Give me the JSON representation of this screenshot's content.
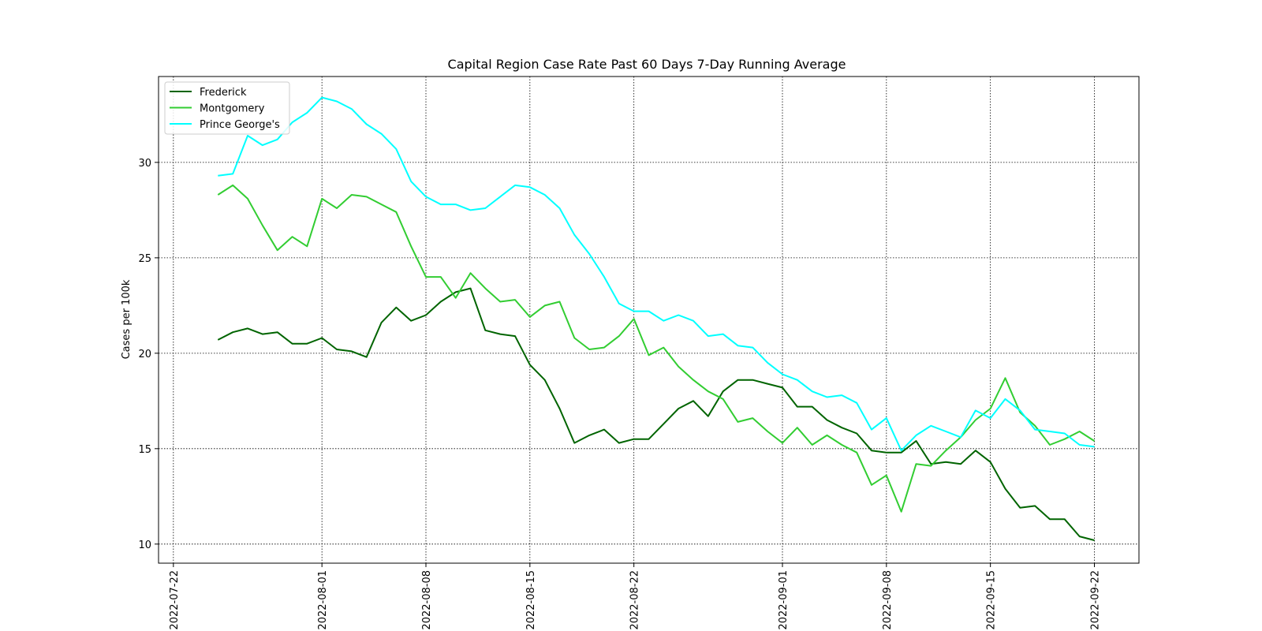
{
  "chart_data": {
    "type": "line",
    "title": "Capital Region Case Rate  Past 60 Days 7-Day Running Average",
    "xlabel": "",
    "ylabel": "Cases per 100k",
    "xlim": [
      "2022-07-21",
      "2022-09-25"
    ],
    "ylim": [
      9,
      34.5
    ],
    "x_ticks": [
      "2022-07-22",
      "2022-08-01",
      "2022-08-08",
      "2022-08-15",
      "2022-08-22",
      "2022-09-01",
      "2022-09-08",
      "2022-09-15",
      "2022-09-22"
    ],
    "y_ticks": [
      10,
      15,
      20,
      25,
      30
    ],
    "grid": true,
    "legend_position": "upper-left",
    "x": [
      "2022-07-25",
      "2022-07-26",
      "2022-07-27",
      "2022-07-28",
      "2022-07-29",
      "2022-07-30",
      "2022-07-31",
      "2022-08-01",
      "2022-08-02",
      "2022-08-03",
      "2022-08-04",
      "2022-08-05",
      "2022-08-06",
      "2022-08-07",
      "2022-08-08",
      "2022-08-09",
      "2022-08-10",
      "2022-08-11",
      "2022-08-12",
      "2022-08-13",
      "2022-08-14",
      "2022-08-15",
      "2022-08-16",
      "2022-08-17",
      "2022-08-18",
      "2022-08-19",
      "2022-08-20",
      "2022-08-21",
      "2022-08-22",
      "2022-08-23",
      "2022-08-24",
      "2022-08-25",
      "2022-08-26",
      "2022-08-27",
      "2022-08-28",
      "2022-08-29",
      "2022-08-30",
      "2022-08-31",
      "2022-09-01",
      "2022-09-02",
      "2022-09-03",
      "2022-09-04",
      "2022-09-05",
      "2022-09-06",
      "2022-09-07",
      "2022-09-08",
      "2022-09-09",
      "2022-09-10",
      "2022-09-11",
      "2022-09-12",
      "2022-09-13",
      "2022-09-14",
      "2022-09-15",
      "2022-09-16",
      "2022-09-17",
      "2022-09-18",
      "2022-09-19",
      "2022-09-20",
      "2022-09-21",
      "2022-09-22"
    ],
    "series": [
      {
        "name": "Frederick",
        "color": "#006400",
        "values": [
          20.7,
          21.1,
          21.3,
          21.0,
          21.1,
          20.5,
          20.5,
          20.8,
          20.2,
          20.1,
          19.8,
          21.6,
          22.4,
          21.7,
          22.0,
          22.7,
          23.2,
          23.4,
          21.2,
          21.0,
          20.9,
          19.4,
          18.6,
          17.1,
          15.3,
          15.7,
          16.0,
          15.3,
          15.5,
          15.5,
          16.3,
          17.1,
          17.5,
          16.7,
          18.0,
          18.6,
          18.6,
          18.4,
          18.2,
          17.2,
          17.2,
          16.5,
          16.1,
          15.8,
          14.9,
          14.8,
          14.8,
          15.4,
          14.2,
          14.3,
          14.2,
          14.9,
          14.3,
          12.9,
          11.9,
          12.0,
          11.3,
          11.3,
          10.4,
          10.2
        ]
      },
      {
        "name": "Montgomery",
        "color": "#32cd32",
        "values": [
          28.3,
          28.8,
          28.1,
          26.7,
          25.4,
          26.1,
          25.6,
          28.1,
          27.6,
          28.3,
          28.2,
          27.8,
          27.4,
          25.6,
          24.0,
          24.0,
          22.9,
          24.2,
          23.4,
          22.7,
          22.8,
          21.9,
          22.5,
          22.7,
          20.8,
          20.2,
          20.3,
          20.9,
          21.8,
          19.9,
          20.3,
          19.3,
          18.6,
          18.0,
          17.6,
          16.4,
          16.6,
          15.9,
          15.3,
          16.1,
          15.2,
          15.7,
          15.2,
          14.8,
          13.1,
          13.6,
          11.7,
          14.2,
          14.1,
          14.9,
          15.6,
          16.5,
          17.1,
          18.7,
          16.9,
          16.2,
          15.2,
          15.5,
          15.9,
          15.4
        ]
      },
      {
        "name": "Prince George's",
        "color": "#00ffff",
        "values": [
          29.3,
          29.4,
          31.4,
          30.9,
          31.2,
          32.1,
          32.6,
          33.4,
          33.2,
          32.8,
          32.0,
          31.5,
          30.7,
          29.0,
          28.2,
          27.8,
          27.8,
          27.5,
          27.6,
          28.2,
          28.8,
          28.7,
          28.3,
          27.6,
          26.2,
          25.2,
          24.0,
          22.6,
          22.2,
          22.2,
          21.7,
          22.0,
          21.7,
          20.9,
          21.0,
          20.4,
          20.3,
          19.5,
          18.9,
          18.6,
          18.0,
          17.7,
          17.8,
          17.4,
          16.0,
          16.6,
          14.9,
          15.7,
          16.2,
          15.9,
          15.6,
          17.0,
          16.6,
          17.6,
          17.0,
          16.0,
          15.9,
          15.8,
          15.2,
          15.1
        ]
      }
    ]
  }
}
